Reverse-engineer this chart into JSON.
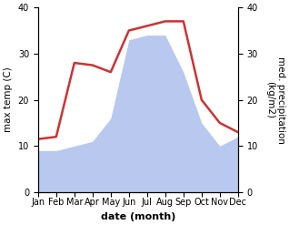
{
  "months": [
    "Jan",
    "Feb",
    "Mar",
    "Apr",
    "May",
    "Jun",
    "Jul",
    "Aug",
    "Sep",
    "Oct",
    "Nov",
    "Dec"
  ],
  "temperature": [
    11.5,
    12.0,
    28.0,
    27.5,
    26.0,
    35.0,
    36.0,
    37.0,
    37.0,
    20.0,
    15.0,
    13.0
  ],
  "precipitation": [
    9,
    9,
    10,
    11,
    16,
    33,
    34,
    34,
    26,
    15,
    10,
    12
  ],
  "temp_color": "#cc3333",
  "precip_color": "#b8c8ee",
  "background_color": "#ffffff",
  "ylabel_left": "max temp (C)",
  "ylabel_right": "med. precipitation\n(kg/m2)",
  "xlabel": "date (month)",
  "ylim": [
    0,
    40
  ],
  "yticks": [
    0,
    10,
    20,
    30,
    40
  ],
  "xlabel_fontsize": 8,
  "ylabel_fontsize": 7.5,
  "tick_fontsize": 7,
  "linewidth": 1.8
}
